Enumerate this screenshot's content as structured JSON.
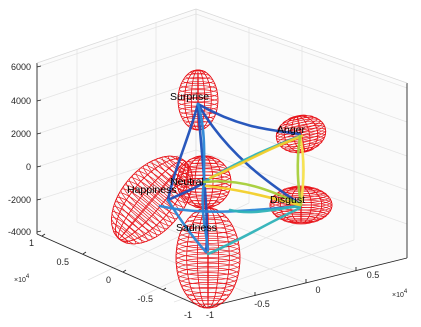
{
  "chart_data": {
    "type": "scatter",
    "title": "",
    "xlabel": "",
    "ylabel": "",
    "zlabel": "",
    "grid": true,
    "view": "3d",
    "axis_x": {
      "lim": [
        -1,
        1
      ],
      "ticks": [
        "-1",
        "-0.5",
        "0",
        "0.5"
      ],
      "exponent": "×10",
      "exponent_power": "4"
    },
    "axis_y": {
      "lim": [
        -1,
        1
      ],
      "ticks": [
        "1",
        "0.5",
        "0",
        "-0.5",
        "-1"
      ],
      "exponent": "×10",
      "exponent_power": "4"
    },
    "axis_z": {
      "lim": [
        -4000,
        6000
      ],
      "ticks": [
        "6000",
        "4000",
        "2000",
        "0",
        "-2000",
        "-4000"
      ]
    },
    "colors": {
      "ellipsoid": "#e8151b",
      "paths": [
        "#1d4fb8",
        "#2a86d6",
        "#2fb2b8",
        "#a6cf3a",
        "#f2cf2a",
        "#f7e04a"
      ],
      "axes": "#262626",
      "grid": "#e6e6e6",
      "pane": "#fbfbfb"
    },
    "clusters": [
      {
        "label": "Surprise"
      },
      {
        "label": "Anger"
      },
      {
        "label": "Neutral"
      },
      {
        "label": "Happiness"
      },
      {
        "label": "Disgust"
      },
      {
        "label": "Sadness"
      }
    ]
  }
}
